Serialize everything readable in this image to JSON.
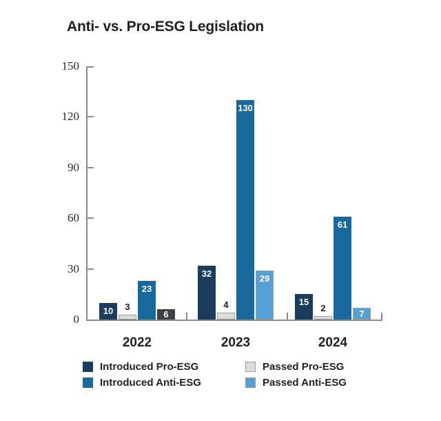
{
  "title": "Anti- vs. Pro-ESG Legislation",
  "colors": {
    "navy": "#1c3c5e",
    "medium_blue": "#17699e",
    "light_blue": "#55a0d5",
    "gray_fill": "#dcdcdc",
    "gray_border": "#9b9b9b",
    "charcoal": "#3d4146",
    "axis": "#8a8a8a",
    "text": "#231f20"
  },
  "chart_data": {
    "type": "bar",
    "title": "Anti- vs. Pro-ESG Legislation",
    "categories": [
      "2022",
      "2023",
      "2024"
    ],
    "series": [
      {
        "name": "Introduced Pro-ESG",
        "color": "#1c3c5e",
        "values": [
          10,
          32,
          15
        ],
        "value_label": "inside-white"
      },
      {
        "name": "Passed Pro-ESG",
        "color": "#dcdcdc",
        "border_color": "#9b9b9b",
        "values": [
          3,
          4,
          2
        ],
        "value_label": "above-black"
      },
      {
        "name": "Introduced Anti-ESG",
        "color": "#17699e",
        "values": [
          23,
          130,
          61
        ],
        "value_label": "inside-white"
      },
      {
        "name": "Passed Anti-ESG",
        "color": "#55a0d5",
        "border_color": "#9b9b9b",
        "values": [
          6,
          29,
          7
        ],
        "value_label": "inside-white",
        "color_overrides": [
          {
            "category": "2022",
            "color": "#3d4146",
            "border_color": "#3d4146"
          }
        ]
      }
    ],
    "ylim": [
      0,
      150
    ],
    "yticks": [
      0,
      30,
      60,
      90,
      120,
      150
    ],
    "grid": false,
    "legend_position": "bottom-left",
    "legend_rows": [
      [
        "Introduced Pro-ESG",
        "Passed Pro-ESG"
      ],
      [
        "Introduced Anti-ESG",
        "Passed Anti-ESG"
      ]
    ]
  }
}
